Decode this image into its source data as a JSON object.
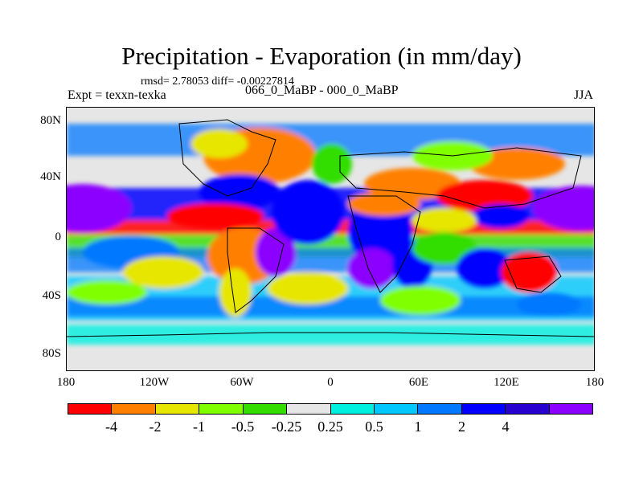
{
  "title": "Precipitation - Evaporation (in mm/day)",
  "stats": "rmsd= 2.78053 diff= -0.00227814",
  "experiment": "Expt = texxn-texka",
  "period": "066_0_MaBP - 000_0_MaBP",
  "season": "JJA",
  "lat_labels": [
    "80N",
    "40N",
    "0",
    "40S",
    "80S"
  ],
  "lon_labels": [
    "180",
    "120W",
    "60W",
    "0",
    "60E",
    "120E",
    "180"
  ],
  "colorbar": {
    "colors": [
      "#ff0000",
      "#ff8000",
      "#e6e600",
      "#80ff00",
      "#33dd00",
      "#e6e6e6",
      "#00f0e0",
      "#00c8ff",
      "#0078ff",
      "#0000ff",
      "#2800d0",
      "#8c00ff"
    ],
    "labels": [
      "-4",
      "-2",
      "-1",
      "-0.5",
      "-0.25",
      "0.25",
      "0.5",
      "1",
      "2",
      "4"
    ]
  }
}
